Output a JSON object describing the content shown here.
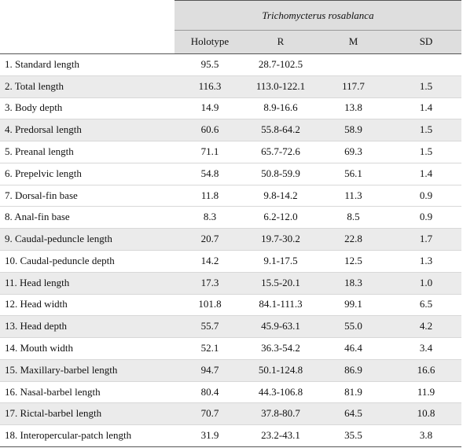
{
  "table": {
    "title": "Trichomycterus rosablanca",
    "columns": [
      "Holotype",
      "R",
      "M",
      "SD"
    ],
    "rows": [
      [
        "1. Standard length",
        "95.5",
        "28.7-102.5"
      ],
      [
        "2. Total length",
        "116.3",
        "113.0-122.1",
        "117.7",
        "1.5"
      ],
      [
        "3. Body depth",
        "14.9",
        "8.9-16.6",
        "13.8",
        "1.4"
      ],
      [
        "4. Predorsal length",
        "60.6",
        "55.8-64.2",
        "58.9",
        "1.5"
      ],
      [
        "5. Preanal length",
        "71.1",
        "65.7-72.6",
        "69.3",
        "1.5"
      ],
      [
        "6. Prepelvic length",
        "54.8",
        "50.8-59.9",
        "56.1",
        "1.4"
      ],
      [
        "7. Dorsal-fin base",
        "11.8",
        "9.8-14.2",
        "11.3",
        "0.9"
      ],
      [
        "8. Anal-fin base",
        "8.3",
        "6.2-12.0",
        "8.5",
        "0.9"
      ],
      [
        "9. Caudal-peduncle length",
        "20.7",
        "19.7-30.2",
        "22.8",
        "1.7"
      ],
      [
        "10. Caudal-peduncle depth",
        "14.2",
        "9.1-17.5",
        "12.5",
        "1.3"
      ],
      [
        "11. Head length",
        "17.3",
        "15.5-20.1",
        "18.3",
        "1.0"
      ],
      [
        "12. Head width",
        "101.8",
        "84.1-111.3",
        "99.1",
        "6.5"
      ],
      [
        "13. Head depth",
        "55.7",
        "45.9-63.1",
        "55.0",
        "4.2"
      ],
      [
        "14. Mouth width",
        "52.1",
        "36.3-54.2",
        "46.4",
        "3.4"
      ],
      [
        "15. Maxillary-barbel length",
        "94.7",
        "50.1-124.8",
        "86.9",
        "16.6"
      ],
      [
        "16. Nasal-barbel length",
        "80.4",
        "44.3-106.8",
        "81.9",
        "11.9"
      ],
      [
        "17. Rictal-barbel length",
        "70.7",
        "37.8-80.7",
        "64.5",
        "10.8"
      ],
      [
        "18. Interopercular-patch length",
        "31.9",
        "23.2-43.1",
        "35.5",
        "3.8"
      ]
    ]
  }
}
